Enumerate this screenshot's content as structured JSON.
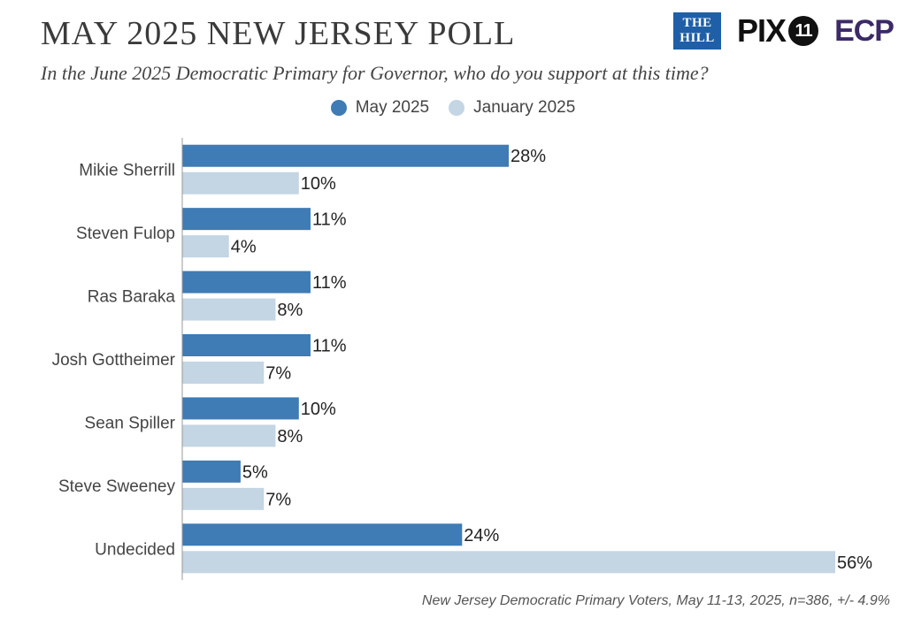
{
  "title": "MAY 2025 NEW JERSEY POLL",
  "subtitle": "In the June 2025 Democratic Primary for Governor, who do you support at this time?",
  "logos": {
    "hill_line1": "THE",
    "hill_line2": "HILL",
    "pix_text": "PIX",
    "pix_number": "11",
    "ecp_text": "ECP"
  },
  "footnote": "New Jersey Democratic Primary Voters, May 11-13, 2025, n=386, +/- 4.9%",
  "chart_data": {
    "type": "bar",
    "orientation": "horizontal",
    "value_suffix": "%",
    "categories": [
      "Mikie Sherrill",
      "Steven Fulop",
      "Ras Baraka",
      "Josh Gottheimer",
      "Sean Spiller",
      "Steve Sweeney",
      "Undecided"
    ],
    "series": [
      {
        "name": "May 2025",
        "color": "#3f7bb4",
        "values": [
          28,
          11,
          11,
          11,
          10,
          5,
          24
        ]
      },
      {
        "name": "January 2025",
        "color": "#c4d5e3",
        "values": [
          10,
          4,
          8,
          7,
          8,
          7,
          56
        ]
      }
    ],
    "xlim": [
      0,
      56
    ],
    "legend_position": "top-center",
    "grid": false
  }
}
